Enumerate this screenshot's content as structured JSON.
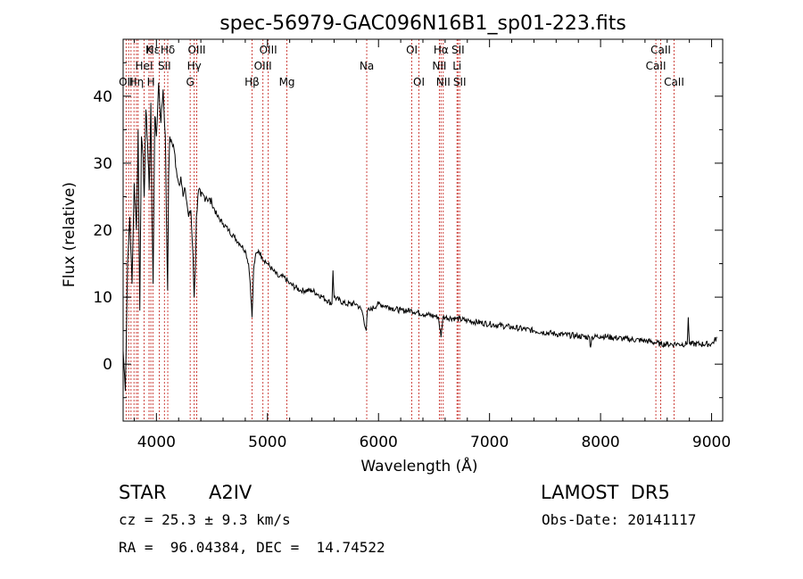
{
  "chart_data": {
    "type": "line",
    "title": "spec-56979-GAC096N16B1_sp01-223.fits",
    "xlabel": "Wavelength (Å)",
    "ylabel": "Flux (relative)",
    "xlim": [
      3700,
      9100
    ],
    "ylim": [
      -8.5,
      48.5
    ],
    "xticks": [
      4000,
      5000,
      6000,
      7000,
      8000,
      9000
    ],
    "yticks": [
      0,
      10,
      20,
      30,
      40
    ],
    "grid": false,
    "legend": "none",
    "line_color": "#000000",
    "marker_color": "#c8302a",
    "x": [
      3700,
      3720,
      3740,
      3760,
      3780,
      3800,
      3820,
      3835,
      3850,
      3865,
      3880,
      3890,
      3905,
      3920,
      3935,
      3950,
      3960,
      3970,
      3985,
      4000,
      4020,
      4040,
      4060,
      4080,
      4090,
      4101,
      4110,
      4120,
      4140,
      4160,
      4180,
      4200,
      4220,
      4240,
      4260,
      4290,
      4310,
      4330,
      4340,
      4350,
      4360,
      4380,
      4400,
      4450,
      4500,
      4550,
      4600,
      4650,
      4700,
      4750,
      4800,
      4830,
      4845,
      4861,
      4875,
      4890,
      4920,
      4950,
      5000,
      5050,
      5100,
      5150,
      5200,
      5300,
      5400,
      5500,
      5580,
      5590,
      5600,
      5700,
      5800,
      5850,
      5890,
      5900,
      5920,
      6000,
      6100,
      6200,
      6300,
      6400,
      6500,
      6540,
      6563,
      6580,
      6600,
      6700,
      6800,
      7000,
      7200,
      7400,
      7600,
      7800,
      7900,
      7910,
      7920,
      8000,
      8200,
      8400,
      8498,
      8542,
      8600,
      8662,
      8700,
      8780,
      8790,
      8800,
      8900,
      9000,
      9050
    ],
    "y": [
      2,
      -4,
      15,
      22,
      12,
      27,
      20,
      35,
      8,
      34,
      31,
      25,
      38,
      33,
      26,
      39,
      22,
      12,
      37,
      34,
      42,
      36,
      41,
      34,
      22,
      11,
      28,
      34,
      33,
      32,
      29,
      27,
      28,
      25,
      26,
      22,
      23,
      16,
      10,
      14,
      22,
      26,
      25,
      25,
      24,
      22,
      21,
      20,
      19,
      18,
      17,
      15,
      12,
      7,
      14,
      16,
      17,
      16,
      15,
      14,
      13,
      13,
      12,
      11,
      11,
      10,
      9,
      14,
      10,
      9,
      9,
      8,
      5,
      8,
      8,
      9,
      8.5,
      8,
      8,
      7.5,
      7.2,
      7,
      4,
      7,
      7,
      6.8,
      6.5,
      6,
      5.5,
      5,
      4.5,
      4.2,
      4,
      2.5,
      4,
      4.2,
      3.8,
      3.5,
      3.2,
      3,
      3,
      3,
      3,
      3,
      7,
      3,
      3,
      3,
      4
    ],
    "lines": [
      {
        "wave": 3727,
        "label": "OII",
        "row": 2
      },
      {
        "wave": 3750,
        "label": "",
        "row": 0
      },
      {
        "wave": 3771,
        "label": "",
        "row": 0
      },
      {
        "wave": 3798,
        "label": "",
        "row": 0
      },
      {
        "wave": 3820,
        "label": "Hη",
        "row": 2
      },
      {
        "wave": 3835,
        "label": "",
        "row": 0
      },
      {
        "wave": 3889,
        "label": "HeI",
        "row": 1
      },
      {
        "wave": 3933,
        "label": "K",
        "row": 0
      },
      {
        "wave": 3950,
        "label": "H",
        "row": 2
      },
      {
        "wave": 3968,
        "label": "Hε",
        "row": 0
      },
      {
        "wave": 4026,
        "label": "",
        "row": 0
      },
      {
        "wave": 4072,
        "label": "SII",
        "row": 1
      },
      {
        "wave": 4102,
        "label": "Hδ",
        "row": 0
      },
      {
        "wave": 4304,
        "label": "G",
        "row": 2
      },
      {
        "wave": 4340,
        "label": "Hγ",
        "row": 1
      },
      {
        "wave": 4363,
        "label": "OIII",
        "row": 0
      },
      {
        "wave": 4861,
        "label": "Hβ",
        "row": 2
      },
      {
        "wave": 4959,
        "label": "OIII",
        "row": 1
      },
      {
        "wave": 5007,
        "label": "OIII",
        "row": 0
      },
      {
        "wave": 5175,
        "label": "Mg",
        "row": 2
      },
      {
        "wave": 5894,
        "label": "Na",
        "row": 1
      },
      {
        "wave": 6300,
        "label": "OI",
        "row": 0
      },
      {
        "wave": 6364,
        "label": "OI",
        "row": 2
      },
      {
        "wave": 6548,
        "label": "NII",
        "row": 1
      },
      {
        "wave": 6563,
        "label": "Hα",
        "row": 0
      },
      {
        "wave": 6583,
        "label": "NII",
        "row": 2
      },
      {
        "wave": 6707,
        "label": "Li",
        "row": 1
      },
      {
        "wave": 6716,
        "label": "SII",
        "row": 0
      },
      {
        "wave": 6731,
        "label": "SII",
        "row": 2
      },
      {
        "wave": 8498,
        "label": "CaII",
        "row": 1
      },
      {
        "wave": 8542,
        "label": "CaII",
        "row": 0
      },
      {
        "wave": 8662,
        "label": "CaII",
        "row": 2
      }
    ]
  },
  "info": {
    "obj_class": "STAR",
    "subclass": "A2IV",
    "survey": "LAMOST  DR5",
    "velocity": "cz = 25.3 ± 9.3 km/s",
    "obs_date": "Obs-Date: 20141117",
    "coords": "RA =  96.04384, DEC =  14.74522"
  }
}
